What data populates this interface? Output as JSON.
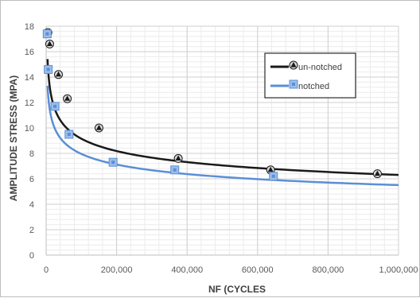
{
  "chart_data": {
    "type": "scatter",
    "xlabel": "NF (CYCLES",
    "ylabel": "AMPLITUDE STRESS (MPA)",
    "xlim": [
      0,
      1000000
    ],
    "ylim": [
      0,
      18
    ],
    "x_ticks": [
      "0",
      "200,000",
      "400,000",
      "600,000",
      "800,000",
      "1,000,000"
    ],
    "y_ticks": [
      "0",
      "2",
      "4",
      "6",
      "8",
      "10",
      "12",
      "14",
      "16",
      "18"
    ],
    "grid": true,
    "legend_position": "top-right",
    "series": [
      {
        "name": "un-notched",
        "color": "#1a1a1a",
        "marker": "triangle-circle",
        "points": [
          {
            "x": 5000,
            "y": 17.5
          },
          {
            "x": 10000,
            "y": 16.6
          },
          {
            "x": 35000,
            "y": 14.2
          },
          {
            "x": 60000,
            "y": 12.3
          },
          {
            "x": 150000,
            "y": 10.0
          },
          {
            "x": 375000,
            "y": 7.6
          },
          {
            "x": 637000,
            "y": 6.7
          },
          {
            "x": 940000,
            "y": 6.4
          }
        ],
        "trend": {
          "a": 59.1,
          "b": -0.162
        }
      },
      {
        "name": "notched",
        "color": "#5b8fd6",
        "marker": "square",
        "points": [
          {
            "x": 3000,
            "y": 17.4
          },
          {
            "x": 6000,
            "y": 14.6
          },
          {
            "x": 25000,
            "y": 11.7
          },
          {
            "x": 65000,
            "y": 9.5
          },
          {
            "x": 190000,
            "y": 7.3
          },
          {
            "x": 365000,
            "y": 6.7
          },
          {
            "x": 645000,
            "y": 6.2
          }
        ],
        "trend": {
          "a": 50.2,
          "b": -0.16
        }
      }
    ]
  }
}
